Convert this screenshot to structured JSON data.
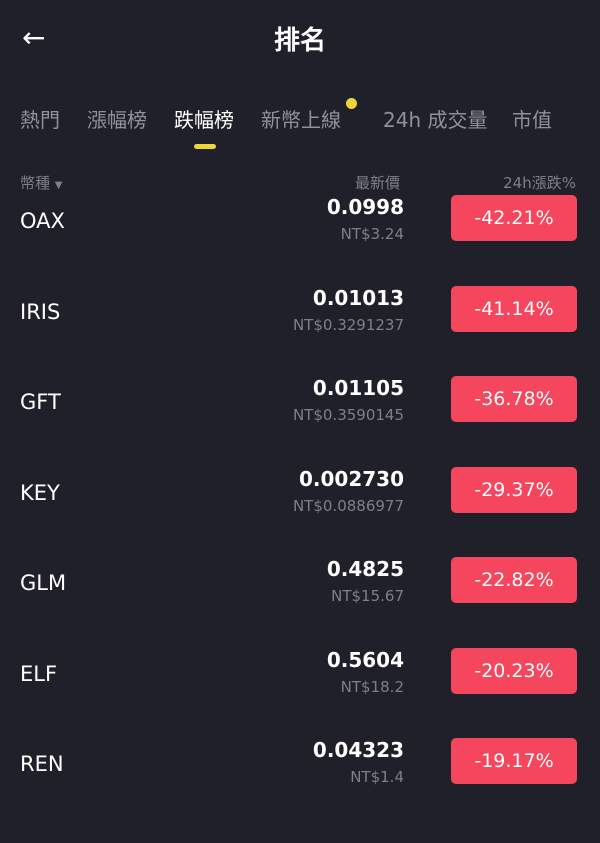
{
  "header": {
    "title": "排名",
    "back_icon": "arrow-left-icon"
  },
  "tabs": [
    {
      "label": "熱門",
      "active": false
    },
    {
      "label": "漲幅榜",
      "active": false
    },
    {
      "label": "跌幅榜",
      "active": true
    },
    {
      "label": "新幣上線",
      "active": false,
      "badge_dot": true
    },
    {
      "label": "24h 成交量",
      "active": false
    },
    {
      "label": "市值",
      "active": false
    }
  ],
  "columns": {
    "coin": "幣種",
    "coin_sort_icon": "caret-down-icon",
    "price": "最新價",
    "change": "24h漲跌%"
  },
  "colors": {
    "accent": "#f0d43a",
    "down": "#f6465d",
    "background": "#1f2029"
  },
  "rows": [
    {
      "symbol": "OAX",
      "price": "0.0998",
      "fiat": "NT$3.24",
      "change": "-42.21%"
    },
    {
      "symbol": "IRIS",
      "price": "0.01013",
      "fiat": "NT$0.3291237",
      "change": "-41.14%"
    },
    {
      "symbol": "GFT",
      "price": "0.01105",
      "fiat": "NT$0.3590145",
      "change": "-36.78%"
    },
    {
      "symbol": "KEY",
      "price": "0.002730",
      "fiat": "NT$0.0886977",
      "change": "-29.37%"
    },
    {
      "symbol": "GLM",
      "price": "0.4825",
      "fiat": "NT$15.67",
      "change": "-22.82%"
    },
    {
      "symbol": "ELF",
      "price": "0.5604",
      "fiat": "NT$18.2",
      "change": "-20.23%"
    },
    {
      "symbol": "REN",
      "price": "0.04323",
      "fiat": "NT$1.4",
      "change": "-19.17%"
    }
  ]
}
